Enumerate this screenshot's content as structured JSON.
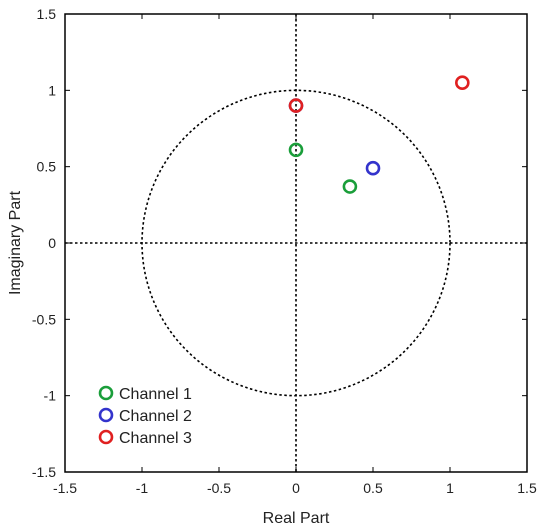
{
  "chart_data": {
    "type": "scatter",
    "title": "",
    "xlabel": "Real Part",
    "ylabel": "Imaginary Part",
    "xlim": [
      -1.5,
      1.5
    ],
    "ylim": [
      -1.5,
      1.5
    ],
    "xticks": [
      -1.5,
      -1,
      -0.5,
      0,
      0.5,
      1,
      1.5
    ],
    "yticks": [
      -1.5,
      -1,
      -0.5,
      0,
      0.5,
      1,
      1.5
    ],
    "xtick_labels": [
      "-1.5",
      "-1",
      "-0.5",
      "0",
      "0.5",
      "1",
      "1.5"
    ],
    "ytick_labels": [
      "-1.5",
      "-1",
      "-0.5",
      "0",
      "0.5",
      "1",
      "1.5"
    ],
    "grid": false,
    "reference_lines": {
      "x_zero": true,
      "y_zero": true,
      "unit_circle_radius": 1.0,
      "style": "dotted"
    },
    "legend_position": "bottom-left",
    "series": [
      {
        "name": "Channel 1",
        "color": "#1a9e3a",
        "points": [
          [
            0.0,
            0.61
          ],
          [
            0.35,
            0.37
          ]
        ]
      },
      {
        "name": "Channel 2",
        "color": "#3333cc",
        "points": [
          [
            0.0,
            0.9
          ],
          [
            0.5,
            0.49
          ]
        ]
      },
      {
        "name": "Channel 3",
        "color": "#e02020",
        "points": [
          [
            0.0,
            0.9
          ],
          [
            1.08,
            1.05
          ]
        ]
      }
    ]
  }
}
